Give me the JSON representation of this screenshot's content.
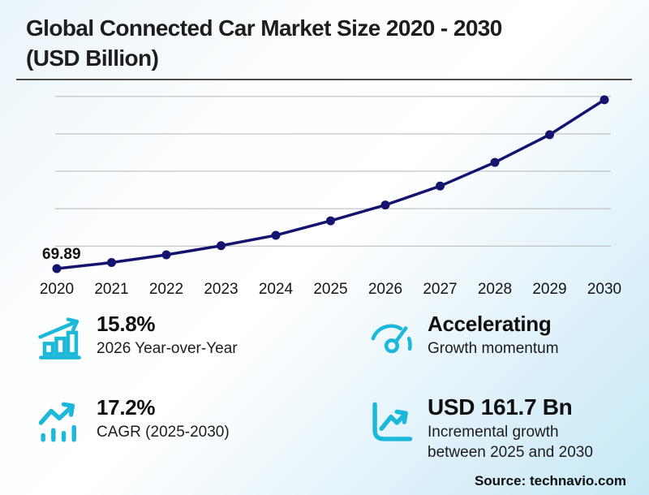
{
  "header": {
    "title": "Global Connected Car Market Size 2020 - 2030\n(USD Billion)"
  },
  "chart_data": {
    "type": "line",
    "title": "Global Connected Car Market Size 2020 - 2030 (USD Billion)",
    "x": [
      2020,
      2021,
      2022,
      2023,
      2024,
      2025,
      2026,
      2027,
      2028,
      2029,
      2030
    ],
    "values": [
      69.89,
      78.0,
      88.3,
      100.5,
      114.4,
      133.8,
      154.9,
      180.2,
      211.9,
      248.9,
      295.5
    ],
    "point_label": {
      "x": 2020,
      "text": "69.89"
    },
    "xlabel": "",
    "ylabel": "",
    "ylim": [
      60,
      310
    ],
    "grid": "horizontal",
    "grid_values": [
      100,
      150,
      200,
      250,
      300
    ],
    "legend": "none",
    "line_color": "#14146e",
    "grid_color": "#b3b6ba"
  },
  "stats": [
    {
      "value": "15.8%",
      "label": "2026 Year-over-Year",
      "icon": "bar-chart-growth-icon"
    },
    {
      "value": "Accelerating",
      "label": "Growth momentum",
      "icon": "gauge-icon"
    },
    {
      "value": "17.2%",
      "label": "CAGR (2025-2030)",
      "icon": "trend-bars-icon"
    },
    {
      "value": "USD 161.7 Bn",
      "label": "Incremental growth\nbetween 2025 and 2030",
      "icon": "axis-trend-icon"
    }
  ],
  "footer": {
    "source": "Source: technavio.com"
  },
  "colors": {
    "accent": "#1cb8d9",
    "line": "#14146e",
    "title": "#1d1d1f"
  }
}
